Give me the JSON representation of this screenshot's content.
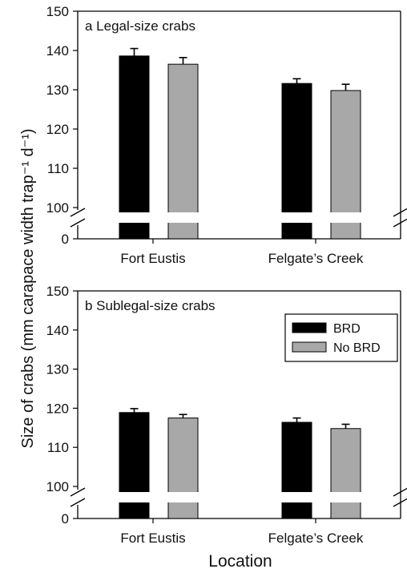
{
  "chart_data": {
    "type": "bar",
    "ylabel": "Size of crabs (mm carapace width trap⁻¹ d⁻¹)",
    "xlabel": "Location",
    "categories": [
      "Fort Eustis",
      "Felgate’s Creek"
    ],
    "legend": {
      "placement": "top-right",
      "entries": [
        {
          "name": "BRD",
          "color": "#000000"
        },
        {
          "name": "No BRD",
          "color": "#a8a8a8"
        }
      ]
    },
    "y_ticks": [
      "0",
      "100",
      "110",
      "120",
      "130",
      "140",
      "150"
    ],
    "y_axis_break": "between 0 and 100",
    "panels": [
      {
        "title": "a  Legal-size crabs",
        "ylim": [
          100,
          150
        ],
        "series": [
          {
            "name": "BRD",
            "values": [
              138.6,
              131.6
            ],
            "errors": [
              1.9,
              1.2
            ]
          },
          {
            "name": "No BRD",
            "values": [
              136.5,
              129.8
            ],
            "errors": [
              1.7,
              1.6
            ]
          }
        ]
      },
      {
        "title": "b  Sublegal-size crabs",
        "ylim": [
          100,
          150
        ],
        "series": [
          {
            "name": "BRD",
            "values": [
              118.9,
              116.4
            ],
            "errors": [
              1.0,
              1.1
            ]
          },
          {
            "name": "No BRD",
            "values": [
              117.5,
              114.8
            ],
            "errors": [
              0.9,
              1.1
            ]
          }
        ]
      }
    ]
  }
}
